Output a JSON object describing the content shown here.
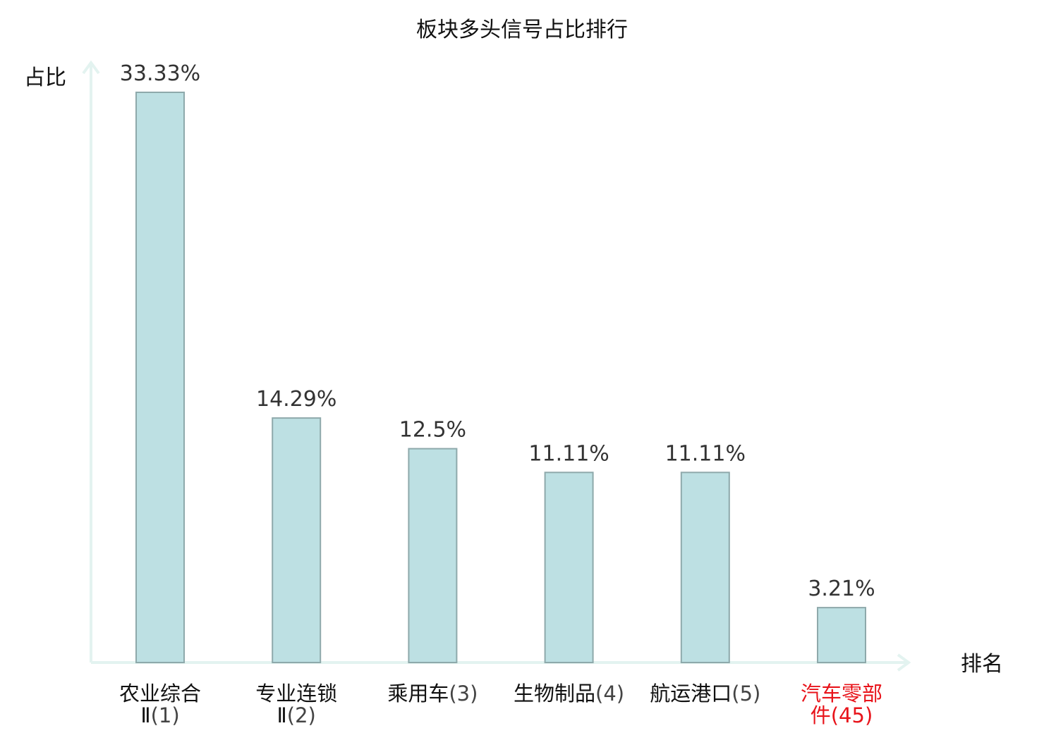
{
  "chart_data": {
    "type": "bar",
    "title": "板块多头信号占比排行",
    "xlabel": "排名",
    "ylabel": "占比",
    "categories": [
      {
        "name": "农业综合Ⅱ",
        "rank": "(1)"
      },
      {
        "name": "专业连锁Ⅱ",
        "rank": "(2)"
      },
      {
        "name": "乘用车",
        "rank": "(3)"
      },
      {
        "name": "生物制品",
        "rank": "(4)"
      },
      {
        "name": "航运港口",
        "rank": "(5)"
      },
      {
        "name": "汽车零部件",
        "rank": "(45)"
      }
    ],
    "values": [
      33.33,
      14.29,
      12.5,
      11.11,
      11.11,
      3.21
    ],
    "value_labels": [
      "33.33%",
      "14.29%",
      "12.5%",
      "11.11%",
      "11.11%",
      "3.21%"
    ],
    "highlight_index": 5,
    "ylim": [
      0,
      33.33
    ],
    "grid": false,
    "colors": {
      "bar_fill": "#bde0e3",
      "bar_stroke": "#8ea9ab",
      "axis": "#e3f3f0",
      "highlight_text": "#e8141b",
      "text": "#111111",
      "value_text": "#333333"
    }
  }
}
